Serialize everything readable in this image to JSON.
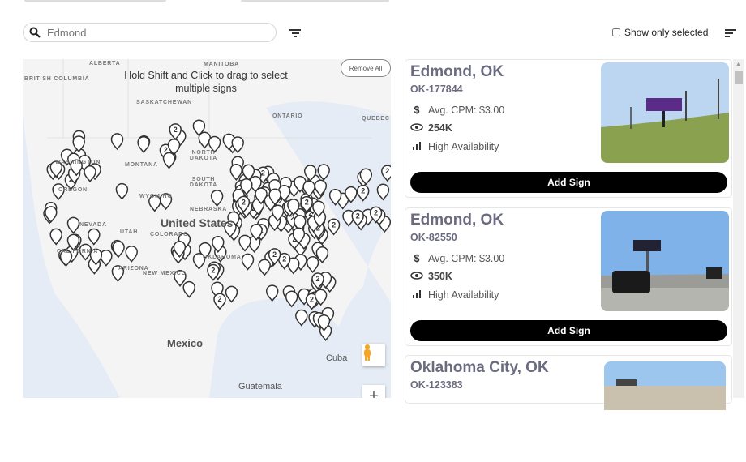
{
  "search": {
    "placeholder": "Edmond",
    "value": ""
  },
  "filter": {
    "show_only_selected_label": "Show only selected",
    "show_only_selected_checked": false
  },
  "map": {
    "hint": "Hold Shift and Click to drag to select multiple signs",
    "remove_all_label": "Remove All",
    "labels": {
      "british_columbia": "BRITISH COLUMBIA",
      "alberta": "ALBERTA",
      "manitoba": "MANITOBA",
      "saskatchewan": "SASKATCHEWAN",
      "ontario": "ONTARIO",
      "quebec": "QUEBEC",
      "washington": "WASHINGTON",
      "montana": "MONTANA",
      "north_dakota": "NORTH DAKOTA",
      "south_dakota": "SOUTH DAKOTA",
      "oregon": "OREGON",
      "wyoming": "WYOMING",
      "nebraska": "NEBRASKA",
      "nevada": "NEVADA",
      "utah": "UTAH",
      "colorado": "COLORADO",
      "california": "CALIFORNIA",
      "arizona": "ARIZONA",
      "new_mexico": "NEW MEXICO",
      "oklahoma": "OKLAHOMA",
      "united_states": "United States",
      "mexico": "Mexico",
      "cuba": "Cuba",
      "guatemala": "Guatemala"
    },
    "cluster_label": "2",
    "zoom_in_label": "+"
  },
  "listings": [
    {
      "title": "Edmond, OK",
      "id": "OK-177844",
      "cpm": "Avg. CPM: $3.00",
      "impressions": "254K",
      "availability": "High Availability",
      "button": "Add Sign"
    },
    {
      "title": "Edmond, OK",
      "id": "OK-82550",
      "cpm": "Avg. CPM: $3.00",
      "impressions": "350K",
      "availability": "High Availability",
      "button": "Add Sign"
    },
    {
      "title": "Oklahoma City, OK",
      "id": "OK-123383"
    }
  ],
  "icons": {
    "search": "search-icon",
    "filter": "filter-icon",
    "sort": "sort-icon",
    "dollar": "dollar-icon",
    "eye": "eye-icon",
    "bars": "signal-bars-icon",
    "pegman": "street-view-pegman-icon"
  }
}
